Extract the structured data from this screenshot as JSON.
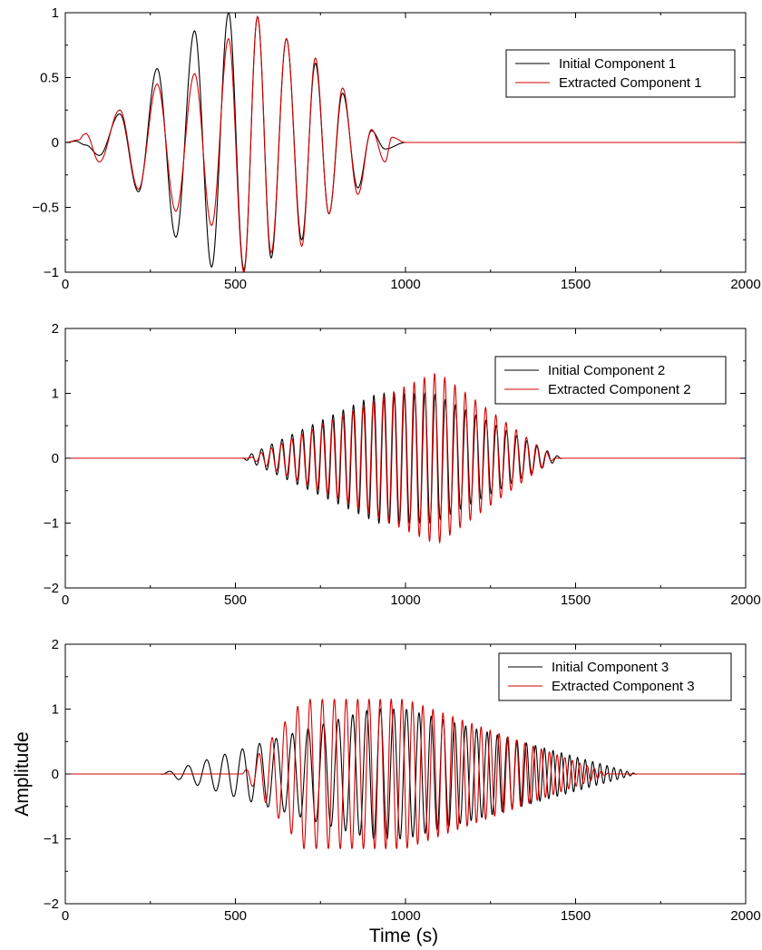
{
  "figure": {
    "xlabel": "Time (s)",
    "ylabel": "Amplitude"
  },
  "chart_data": [
    {
      "type": "line",
      "xlim": [
        0,
        2000
      ],
      "ylim": [
        -1,
        1
      ],
      "xticks": [
        0,
        500,
        1000,
        1500,
        2000
      ],
      "xtick_labels": [
        "0",
        "500",
        "1000",
        "1500",
        "2000"
      ],
      "yticks": [
        -1,
        -0.5,
        0,
        0.5,
        1
      ],
      "ytick_labels": [
        "−1",
        "−0.5",
        "0",
        "0.5",
        "1"
      ],
      "grid": false,
      "legend": "top-right",
      "series": [
        {
          "name": "Initial Component 1",
          "color": "#000000",
          "x": [
            0,
            30,
            60,
            100,
            160,
            215,
            270,
            325,
            380,
            430,
            480,
            525,
            565,
            605,
            650,
            695,
            735,
            775,
            815,
            860,
            900,
            940,
            1000,
            2000
          ],
          "y": [
            0,
            0.01,
            -0.02,
            -0.1,
            0.22,
            -0.38,
            0.57,
            -0.73,
            0.86,
            -0.96,
            1.0,
            -0.98,
            0.97,
            -0.89,
            0.8,
            -0.75,
            0.61,
            -0.55,
            0.38,
            -0.35,
            0.09,
            -0.05,
            0,
            0
          ]
        },
        {
          "name": "Extracted Component 1",
          "color": "#d40000",
          "x": [
            0,
            40,
            55,
            60,
            100,
            160,
            215,
            270,
            325,
            380,
            430,
            480,
            525,
            565,
            605,
            650,
            695,
            735,
            775,
            815,
            860,
            900,
            940,
            960,
            1000,
            2000
          ],
          "y": [
            0,
            0.02,
            0.06,
            0.07,
            -0.15,
            0.25,
            -0.36,
            0.45,
            -0.53,
            0.53,
            -0.64,
            0.8,
            -1.0,
            0.97,
            -0.85,
            0.8,
            -0.8,
            0.65,
            -0.55,
            0.42,
            -0.4,
            0.1,
            -0.15,
            0.04,
            0,
            0
          ]
        }
      ]
    },
    {
      "type": "line",
      "xlim": [
        0,
        2000
      ],
      "ylim": [
        -2,
        2
      ],
      "xticks": [
        0,
        500,
        1000,
        1500,
        2000
      ],
      "xtick_labels": [
        "0",
        "500",
        "1000",
        "1500",
        "2000"
      ],
      "yticks": [
        -2,
        -1,
        0,
        1,
        2
      ],
      "ytick_labels": [
        "−2",
        "−1",
        "0",
        "1",
        "2"
      ],
      "grid": false,
      "legend": "top-right",
      "series": [
        {
          "name": "Initial Component 2",
          "color": "#000000",
          "envelope": {
            "start": 520,
            "peak_start": 920,
            "peak_end": 1080,
            "end": 1460,
            "amplitude": 1.0,
            "period": 30,
            "phase": 0
          }
        },
        {
          "name": "Extracted Component 2",
          "color": "#d40000",
          "envelope": {
            "start": 540,
            "peak_start": 1080,
            "peak_end": 1100,
            "end": 1440,
            "amplitude": 1.3,
            "period": 30,
            "phase": 0.3
          }
        }
      ]
    },
    {
      "type": "line",
      "xlim": [
        0,
        2000
      ],
      "ylim": [
        -2,
        2
      ],
      "xticks": [
        0,
        500,
        1000,
        1500,
        2000
      ],
      "xtick_labels": [
        "0",
        "500",
        "1000",
        "1500",
        "2000"
      ],
      "yticks": [
        -2,
        -1,
        0,
        1,
        2
      ],
      "ytick_labels": [
        "−2",
        "−1",
        "0",
        "1",
        "2"
      ],
      "grid": false,
      "legend": "top-right",
      "series": [
        {
          "name": "Initial Component 3",
          "color": "#000000",
          "envelope": {
            "start": 280,
            "peak_start": 900,
            "peak_end": 1000,
            "end": 1680,
            "amplitude": 1.0,
            "period_start": 58,
            "period_end": 18
          }
        },
        {
          "name": "Extracted Component 3",
          "color": "#d40000",
          "envelope": {
            "start": 520,
            "peak_start": 700,
            "peak_end": 1000,
            "end": 1600,
            "amplitude": 1.15,
            "period_start": 40,
            "period_end": 20
          }
        }
      ]
    }
  ]
}
